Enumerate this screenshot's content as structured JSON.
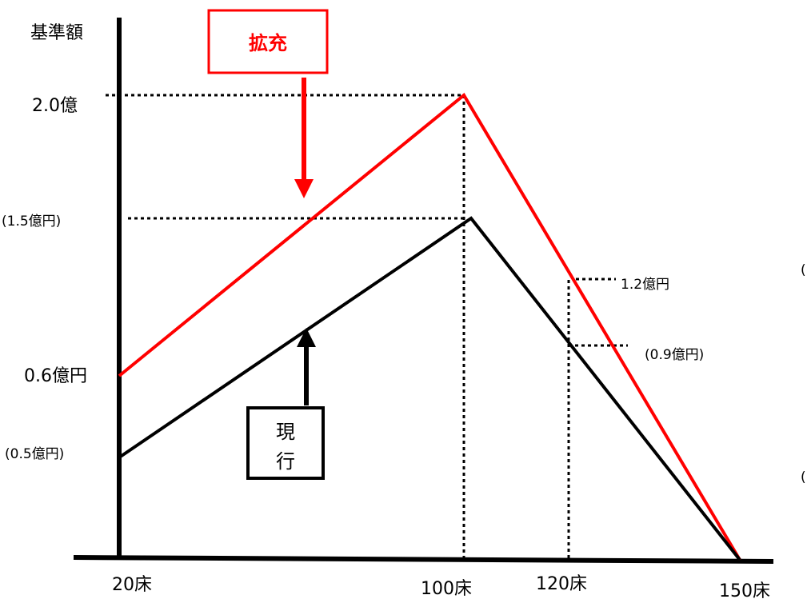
{
  "chart_data": {
    "type": "line",
    "ylabel": "基準額",
    "x_tick_labels": [
      "20床",
      "100床",
      "120床",
      "150床"
    ],
    "x": [
      20,
      100,
      150
    ],
    "series": [
      {
        "name": "拡充",
        "color": "#ff0000",
        "values": [
          0.6,
          2.0,
          0.0
        ]
      },
      {
        "name": "現行",
        "color": "#000000",
        "values": [
          0.5,
          1.5,
          0.0
        ]
      }
    ],
    "y_tick_labels": [
      "2.0億",
      "(1.5億円)",
      "0.6億円",
      "(0.5億円)"
    ],
    "annotations": [
      "1.2億円",
      "(0.9億円)"
    ],
    "callouts": {
      "expanded": "拡充",
      "current": "現行"
    },
    "reference_points": [
      {
        "x": 120,
        "y": 1.2
      },
      {
        "x": 120,
        "y": 0.9
      }
    ]
  }
}
